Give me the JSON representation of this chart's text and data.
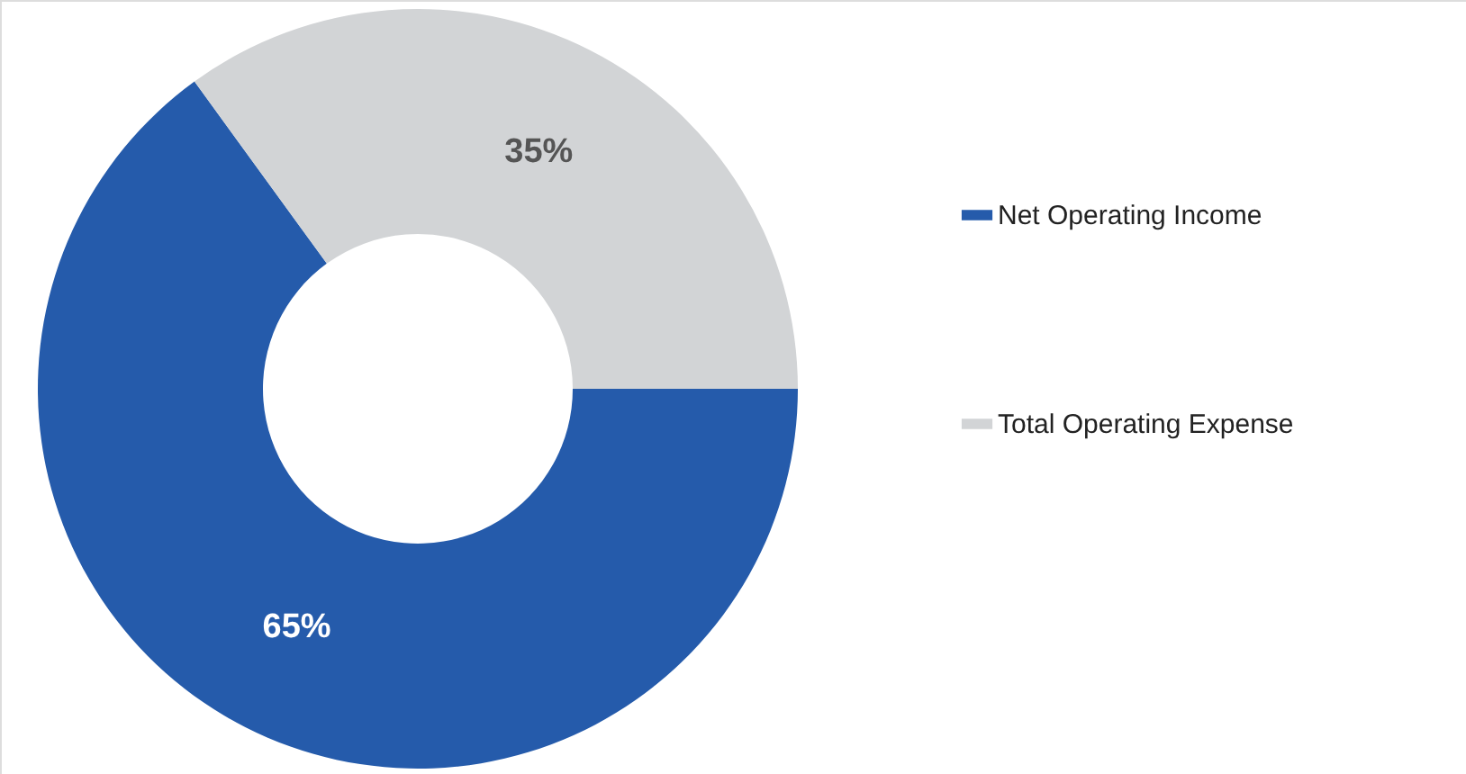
{
  "chart_data": {
    "type": "donut",
    "categories": [
      "Net Operating Income",
      "Total Operating Expense"
    ],
    "values": [
      65,
      35
    ],
    "colors": [
      "#255bab",
      "#d2d4d6"
    ],
    "value_labels": [
      "65%",
      "35%"
    ],
    "legend": "right"
  }
}
